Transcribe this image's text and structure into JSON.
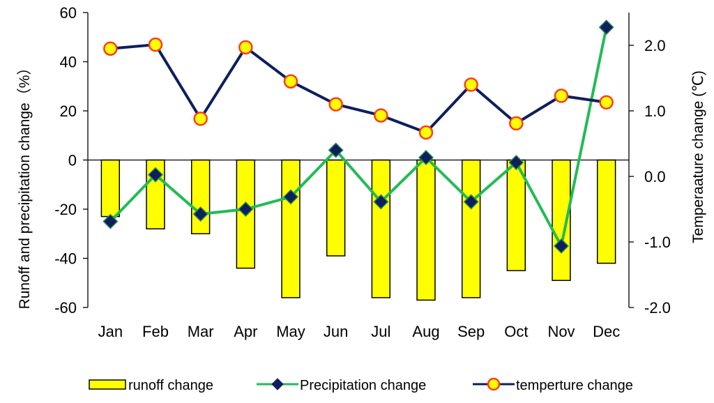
{
  "chart_data": {
    "type": "bar+line",
    "categories": [
      "Jan",
      "Feb",
      "Mar",
      "Apr",
      "May",
      "Jun",
      "Jul",
      "Aug",
      "Sep",
      "Oct",
      "Nov",
      "Dec"
    ],
    "series": [
      {
        "name": "runoff change",
        "type": "bar",
        "axis": "left",
        "color": "#ffff00",
        "values": [
          -23,
          -28,
          -30,
          -44,
          -56,
          -39,
          -56,
          -57,
          -56,
          -45,
          -49,
          -42
        ]
      },
      {
        "name": "Precipitation change",
        "type": "line",
        "axis": "left",
        "line_color": "#22bb55",
        "marker": "diamond",
        "marker_color": "#0d1f5c",
        "values": [
          -25,
          -6,
          -22,
          -20,
          -15,
          4,
          -17,
          1,
          -17,
          -1,
          -35,
          54
        ]
      },
      {
        "name": "temperture change",
        "type": "line",
        "axis": "right",
        "line_color": "#0d1f5c",
        "marker": "circle",
        "marker_color": "#ffff00",
        "marker_edge_color": "#ff3b1f",
        "values": [
          1.95,
          2.01,
          0.88,
          1.97,
          1.45,
          1.1,
          0.93,
          0.67,
          1.4,
          0.81,
          1.23,
          1.13
        ]
      }
    ],
    "left_axis": {
      "label": "Runoff and precipitation change（%）",
      "ylim": [
        -60,
        60
      ],
      "ticks": [
        60,
        40,
        20,
        0,
        -20,
        -40,
        -60
      ],
      "tick_labels": [
        "60",
        "40",
        "20",
        "0",
        "-20",
        "-40",
        "-60"
      ]
    },
    "right_axis": {
      "label": "Temperaature change (℃)",
      "ylim": [
        -2.0,
        2.5
      ],
      "ticks": [
        2.0,
        1.0,
        0.0,
        -1.0,
        -2.0
      ],
      "tick_labels": [
        "2.0",
        "1.0",
        "0.0",
        "-1.0",
        "-2.0"
      ]
    },
    "legend": {
      "placement": "bottom",
      "entries": [
        "runoff change",
        "Precipitation change",
        "temperture change"
      ]
    }
  }
}
